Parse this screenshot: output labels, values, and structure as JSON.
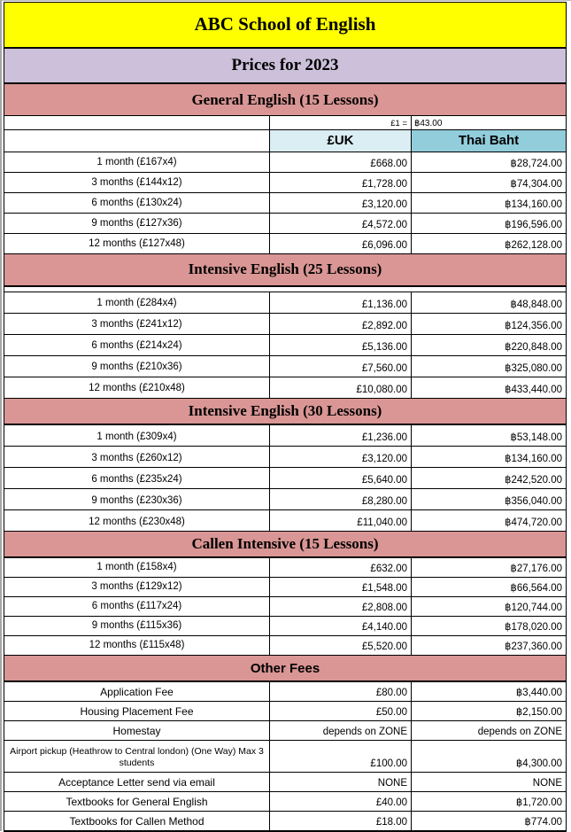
{
  "header": {
    "school_name": "ABC School of English",
    "subtitle": "Prices for 2023"
  },
  "exchange": {
    "label": "£1 =",
    "value": "฿43.00"
  },
  "columns": {
    "currency_uk": "£UK",
    "currency_baht": "Thai Baht"
  },
  "sections": [
    {
      "header": "General English (15 Lessons)",
      "rows": [
        [
          "1 month (£167x4)",
          "£668.00",
          "฿28,724.00"
        ],
        [
          "3 months (£144x12)",
          "£1,728.00",
          "฿74,304.00"
        ],
        [
          "6 months (£130x24)",
          "£3,120.00",
          "฿134,160.00"
        ],
        [
          "9 months (£127x36)",
          "£4,572.00",
          "฿196,596.00"
        ],
        [
          "12 months (£127x48)",
          "£6,096.00",
          "฿262,128.00"
        ]
      ]
    },
    {
      "header": "Intensive English (25 Lessons)",
      "rows": [
        [
          "1 month (£284x4)",
          "£1,136.00",
          "฿48,848.00"
        ],
        [
          "3 months (£241x12)",
          "£2,892.00",
          "฿124,356.00"
        ],
        [
          "6 months (£214x24)",
          "£5,136.00",
          "฿220,848.00"
        ],
        [
          "9 months (£210x36)",
          "£7,560.00",
          "฿325,080.00"
        ],
        [
          "12 months (£210x48)",
          "£10,080.00",
          "฿433,440.00"
        ]
      ]
    },
    {
      "header": "Intensive English (30 Lessons)",
      "rows": [
        [
          "1 month (£309x4)",
          "£1,236.00",
          "฿53,148.00"
        ],
        [
          "3 months (£260x12)",
          "£3,120.00",
          "฿134,160.00"
        ],
        [
          "6 months (£235x24)",
          "£5,640.00",
          "฿242,520.00"
        ],
        [
          "9 months (£230x36)",
          "£8,280.00",
          "฿356,040.00"
        ],
        [
          "12 months (£230x48)",
          "£11,040.00",
          "฿474,720.00"
        ]
      ]
    },
    {
      "header": "Callen Intensive (15 Lessons)",
      "rows": [
        [
          "1 month (£158x4)",
          "£632.00",
          "฿27,176.00"
        ],
        [
          "3 months (£129x12)",
          "£1,548.00",
          "฿66,564.00"
        ],
        [
          "6 months (£117x24)",
          "£2,808.00",
          "฿120,744.00"
        ],
        [
          "9 months (£115x36)",
          "£4,140.00",
          "฿178,020.00"
        ],
        [
          "12 months (£115x48)",
          "£5,520.00",
          "฿237,360.00"
        ]
      ]
    }
  ],
  "other_fees": {
    "header": "Other Fees",
    "rows": [
      [
        "Application Fee",
        "£80.00",
        "฿3,440.00"
      ],
      [
        "Housing Placement Fee",
        "£50.00",
        "฿2,150.00"
      ],
      [
        "Homestay",
        "depends on ZONE",
        "depends on ZONE"
      ],
      [
        "Airport pickup (Heathrow to Central london) (One Way) Max 3 students",
        "£100.00",
        "฿4,300.00"
      ],
      [
        "Acceptance Letter send via email",
        "NONE",
        "NONE"
      ],
      [
        "Textbooks for General English",
        "£40.00",
        "฿1,720.00"
      ],
      [
        "Textbooks for Callen Method",
        "£18.00",
        "฿774.00"
      ]
    ]
  },
  "colors": {
    "title_bg": "#FFFF00",
    "subtitle_bg": "#CCC0DA",
    "section_header_bg": "#D99694",
    "uk_column_header_bg": "#DAEEF3",
    "baht_column_header_bg": "#92CDDC",
    "border": "#000000"
  }
}
